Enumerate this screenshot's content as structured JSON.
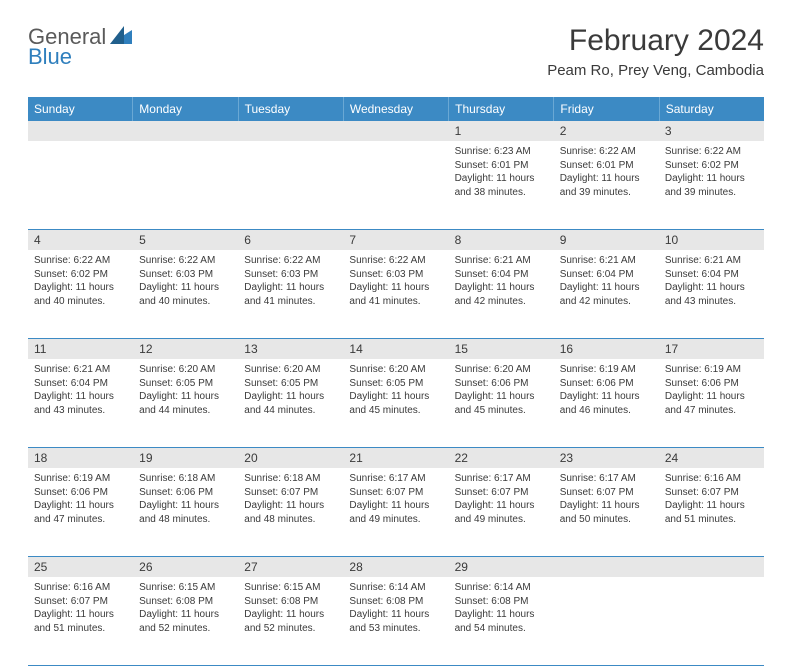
{
  "logo": {
    "text1": "General",
    "text2": "Blue",
    "icon_fill": "#2f7fbd"
  },
  "title": {
    "month_year": "February 2024",
    "location": "Peam Ro, Prey Veng, Cambodia"
  },
  "colors": {
    "header_bg": "#3c8ac4",
    "header_fg": "#ffffff",
    "daynum_bg": "#e7e7e7",
    "rule": "#3c8ac4"
  },
  "weekdays": [
    "Sunday",
    "Monday",
    "Tuesday",
    "Wednesday",
    "Thursday",
    "Friday",
    "Saturday"
  ],
  "weeks": [
    [
      {
        "n": "",
        "sr": "",
        "ss": "",
        "dl1": "",
        "dl2": ""
      },
      {
        "n": "",
        "sr": "",
        "ss": "",
        "dl1": "",
        "dl2": ""
      },
      {
        "n": "",
        "sr": "",
        "ss": "",
        "dl1": "",
        "dl2": ""
      },
      {
        "n": "",
        "sr": "",
        "ss": "",
        "dl1": "",
        "dl2": ""
      },
      {
        "n": "1",
        "sr": "Sunrise: 6:23 AM",
        "ss": "Sunset: 6:01 PM",
        "dl1": "Daylight: 11 hours",
        "dl2": "and 38 minutes."
      },
      {
        "n": "2",
        "sr": "Sunrise: 6:22 AM",
        "ss": "Sunset: 6:01 PM",
        "dl1": "Daylight: 11 hours",
        "dl2": "and 39 minutes."
      },
      {
        "n": "3",
        "sr": "Sunrise: 6:22 AM",
        "ss": "Sunset: 6:02 PM",
        "dl1": "Daylight: 11 hours",
        "dl2": "and 39 minutes."
      }
    ],
    [
      {
        "n": "4",
        "sr": "Sunrise: 6:22 AM",
        "ss": "Sunset: 6:02 PM",
        "dl1": "Daylight: 11 hours",
        "dl2": "and 40 minutes."
      },
      {
        "n": "5",
        "sr": "Sunrise: 6:22 AM",
        "ss": "Sunset: 6:03 PM",
        "dl1": "Daylight: 11 hours",
        "dl2": "and 40 minutes."
      },
      {
        "n": "6",
        "sr": "Sunrise: 6:22 AM",
        "ss": "Sunset: 6:03 PM",
        "dl1": "Daylight: 11 hours",
        "dl2": "and 41 minutes."
      },
      {
        "n": "7",
        "sr": "Sunrise: 6:22 AM",
        "ss": "Sunset: 6:03 PM",
        "dl1": "Daylight: 11 hours",
        "dl2": "and 41 minutes."
      },
      {
        "n": "8",
        "sr": "Sunrise: 6:21 AM",
        "ss": "Sunset: 6:04 PM",
        "dl1": "Daylight: 11 hours",
        "dl2": "and 42 minutes."
      },
      {
        "n": "9",
        "sr": "Sunrise: 6:21 AM",
        "ss": "Sunset: 6:04 PM",
        "dl1": "Daylight: 11 hours",
        "dl2": "and 42 minutes."
      },
      {
        "n": "10",
        "sr": "Sunrise: 6:21 AM",
        "ss": "Sunset: 6:04 PM",
        "dl1": "Daylight: 11 hours",
        "dl2": "and 43 minutes."
      }
    ],
    [
      {
        "n": "11",
        "sr": "Sunrise: 6:21 AM",
        "ss": "Sunset: 6:04 PM",
        "dl1": "Daylight: 11 hours",
        "dl2": "and 43 minutes."
      },
      {
        "n": "12",
        "sr": "Sunrise: 6:20 AM",
        "ss": "Sunset: 6:05 PM",
        "dl1": "Daylight: 11 hours",
        "dl2": "and 44 minutes."
      },
      {
        "n": "13",
        "sr": "Sunrise: 6:20 AM",
        "ss": "Sunset: 6:05 PM",
        "dl1": "Daylight: 11 hours",
        "dl2": "and 44 minutes."
      },
      {
        "n": "14",
        "sr": "Sunrise: 6:20 AM",
        "ss": "Sunset: 6:05 PM",
        "dl1": "Daylight: 11 hours",
        "dl2": "and 45 minutes."
      },
      {
        "n": "15",
        "sr": "Sunrise: 6:20 AM",
        "ss": "Sunset: 6:06 PM",
        "dl1": "Daylight: 11 hours",
        "dl2": "and 45 minutes."
      },
      {
        "n": "16",
        "sr": "Sunrise: 6:19 AM",
        "ss": "Sunset: 6:06 PM",
        "dl1": "Daylight: 11 hours",
        "dl2": "and 46 minutes."
      },
      {
        "n": "17",
        "sr": "Sunrise: 6:19 AM",
        "ss": "Sunset: 6:06 PM",
        "dl1": "Daylight: 11 hours",
        "dl2": "and 47 minutes."
      }
    ],
    [
      {
        "n": "18",
        "sr": "Sunrise: 6:19 AM",
        "ss": "Sunset: 6:06 PM",
        "dl1": "Daylight: 11 hours",
        "dl2": "and 47 minutes."
      },
      {
        "n": "19",
        "sr": "Sunrise: 6:18 AM",
        "ss": "Sunset: 6:06 PM",
        "dl1": "Daylight: 11 hours",
        "dl2": "and 48 minutes."
      },
      {
        "n": "20",
        "sr": "Sunrise: 6:18 AM",
        "ss": "Sunset: 6:07 PM",
        "dl1": "Daylight: 11 hours",
        "dl2": "and 48 minutes."
      },
      {
        "n": "21",
        "sr": "Sunrise: 6:17 AM",
        "ss": "Sunset: 6:07 PM",
        "dl1": "Daylight: 11 hours",
        "dl2": "and 49 minutes."
      },
      {
        "n": "22",
        "sr": "Sunrise: 6:17 AM",
        "ss": "Sunset: 6:07 PM",
        "dl1": "Daylight: 11 hours",
        "dl2": "and 49 minutes."
      },
      {
        "n": "23",
        "sr": "Sunrise: 6:17 AM",
        "ss": "Sunset: 6:07 PM",
        "dl1": "Daylight: 11 hours",
        "dl2": "and 50 minutes."
      },
      {
        "n": "24",
        "sr": "Sunrise: 6:16 AM",
        "ss": "Sunset: 6:07 PM",
        "dl1": "Daylight: 11 hours",
        "dl2": "and 51 minutes."
      }
    ],
    [
      {
        "n": "25",
        "sr": "Sunrise: 6:16 AM",
        "ss": "Sunset: 6:07 PM",
        "dl1": "Daylight: 11 hours",
        "dl2": "and 51 minutes."
      },
      {
        "n": "26",
        "sr": "Sunrise: 6:15 AM",
        "ss": "Sunset: 6:08 PM",
        "dl1": "Daylight: 11 hours",
        "dl2": "and 52 minutes."
      },
      {
        "n": "27",
        "sr": "Sunrise: 6:15 AM",
        "ss": "Sunset: 6:08 PM",
        "dl1": "Daylight: 11 hours",
        "dl2": "and 52 minutes."
      },
      {
        "n": "28",
        "sr": "Sunrise: 6:14 AM",
        "ss": "Sunset: 6:08 PM",
        "dl1": "Daylight: 11 hours",
        "dl2": "and 53 minutes."
      },
      {
        "n": "29",
        "sr": "Sunrise: 6:14 AM",
        "ss": "Sunset: 6:08 PM",
        "dl1": "Daylight: 11 hours",
        "dl2": "and 54 minutes."
      },
      {
        "n": "",
        "sr": "",
        "ss": "",
        "dl1": "",
        "dl2": ""
      },
      {
        "n": "",
        "sr": "",
        "ss": "",
        "dl1": "",
        "dl2": ""
      }
    ]
  ]
}
